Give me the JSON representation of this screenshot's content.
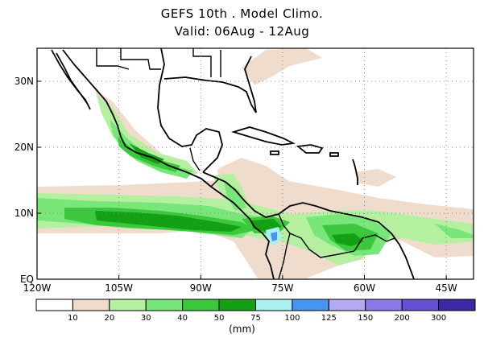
{
  "title": {
    "line1": "GEFS 10th . Model Climo.",
    "line2": "Valid: 06Aug - 12Aug"
  },
  "map": {
    "projection": "lat-lon",
    "lon_range": [
      -120,
      -40
    ],
    "lat_range": [
      0,
      35
    ],
    "lon_ticks": [
      {
        "value": -120,
        "label": "120W"
      },
      {
        "value": -105,
        "label": "105W"
      },
      {
        "value": -90,
        "label": "90W"
      },
      {
        "value": -75,
        "label": "75W"
      },
      {
        "value": -60,
        "label": "60W"
      },
      {
        "value": -45,
        "label": "45W"
      }
    ],
    "lat_ticks": [
      {
        "value": 0,
        "label": "EQ"
      },
      {
        "value": 10,
        "label": "10N"
      },
      {
        "value": 20,
        "label": "20N"
      },
      {
        "value": 30,
        "label": "30N"
      }
    ],
    "gridlines": "dotted"
  },
  "colorbar": {
    "units": "(mm)",
    "labels": [
      "10",
      "20",
      "30",
      "40",
      "50",
      "75",
      "100",
      "125",
      "150",
      "200",
      "300"
    ],
    "colors": [
      "#ffffff",
      "#f0dccd",
      "#b4f0a0",
      "#78e678",
      "#3cc83c",
      "#14a014",
      "#aaf0f0",
      "#4696f0",
      "#b4aaf0",
      "#8c78e6",
      "#6450d2",
      "#3c28a0"
    ]
  },
  "colors": {
    "land_outline": "#000000",
    "shade_low": "#f0dccd",
    "shade_20": "#b4f0a0",
    "shade_30": "#78e678",
    "shade_40": "#3cc83c",
    "shade_50": "#14a014",
    "shade_75": "#aaf0f0",
    "shade_100": "#4696f0"
  }
}
